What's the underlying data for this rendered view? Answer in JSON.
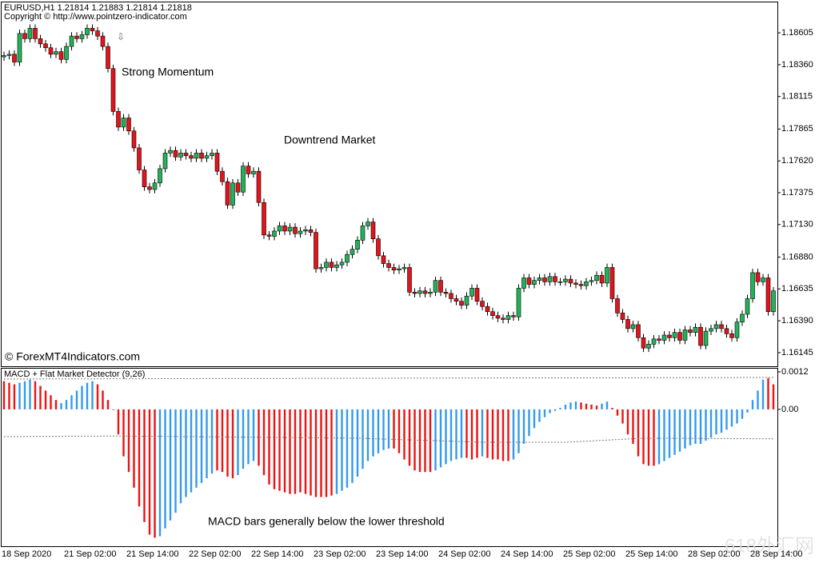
{
  "chart_data": [
    {
      "type": "candlestick",
      "title": "EURUSD,H1  1.21814 1.21883 1.21814 1.21818",
      "subtitle": "Copyright © http://www.pointzero-indicator.com",
      "annotations": [
        "Strong Momentum",
        "Downtrend Market"
      ],
      "watermark": "© ForexMT4Indicators.com",
      "up_color": "#22b35a",
      "down_color": "#e3141b",
      "ylim": [
        1.1604,
        1.18839
      ],
      "yticks": [
        1.18605,
        {
          "value": 1.1836,
          "label": "1.18360"
        },
        1.18115,
        1.17865,
        {
          "value": 1.1762,
          "label": "1.17620"
        },
        1.17375,
        {
          "value": 1.1713,
          "label": "1.17130"
        },
        {
          "value": 1.1688,
          "label": "1.16880"
        },
        1.16635,
        {
          "value": 1.1639,
          "label": "1.16390"
        },
        1.16145
      ],
      "grid": false,
      "open": [
        1.1842,
        1.1843,
        1.1844,
        1.1838,
        1.186,
        1.1856,
        1.1864,
        1.1856,
        1.1852,
        1.1849,
        1.1844,
        1.1846,
        1.184,
        1.185,
        1.1858,
        1.1856,
        1.1859,
        1.1864,
        1.1862,
        1.1858,
        1.185,
        1.1833,
        1.18,
        1.1788,
        1.1795,
        1.1785,
        1.1772,
        1.1755,
        1.1742,
        1.174,
        1.1745,
        1.1756,
        1.1768,
        1.177,
        1.1765,
        1.1768,
        1.1766,
        1.1764,
        1.1768,
        1.1764,
        1.1766,
        1.1768,
        1.1754,
        1.1746,
        1.1728,
        1.1745,
        1.1738,
        1.1758,
        1.1752,
        1.1754,
        1.173,
        1.1705,
        1.1704,
        1.1708,
        1.1712,
        1.1708,
        1.1711,
        1.1706,
        1.1708,
        1.1709,
        1.1707,
        1.1679,
        1.168,
        1.1684,
        1.168,
        1.1682,
        1.1684,
        1.169,
        1.1694,
        1.1701,
        1.1712,
        1.1715,
        1.1702,
        1.1689,
        1.1683,
        1.168,
        1.1678,
        1.1679,
        1.168,
        1.1661,
        1.166,
        1.1662,
        1.166,
        1.1661,
        1.167,
        1.1661,
        1.166,
        1.1656,
        1.1654,
        1.1651,
        1.1658,
        1.1664,
        1.1654,
        1.165,
        1.1646,
        1.1643,
        1.1641,
        1.164,
        1.1643,
        1.1642,
        1.1664,
        1.1672,
        1.1667,
        1.167,
        1.1672,
        1.1669,
        1.1673,
        1.1669,
        1.1669,
        1.1671,
        1.1668,
        1.1667,
        1.1666,
        1.1669,
        1.167,
        1.1674,
        1.1668,
        1.168,
        1.1656,
        1.1645,
        1.164,
        1.1633,
        1.1636,
        1.1626,
        1.1618,
        1.1621,
        1.1625,
        1.1624,
        1.1628,
        1.1626,
        1.163,
        1.1624,
        1.1632,
        1.163,
        1.1634,
        1.162,
        1.1631,
        1.1633,
        1.1636,
        1.1633,
        1.1629,
        1.1626,
        1.1638,
        1.1644,
        1.1656,
        1.1676,
        1.1669,
        1.1672,
        1.1646
      ],
      "high": [
        1.1846,
        1.1847,
        1.1847,
        1.1863,
        1.1863,
        1.1867,
        1.1867,
        1.1859,
        1.1855,
        1.1852,
        1.1849,
        1.1849,
        1.1853,
        1.1861,
        1.1861,
        1.1862,
        1.1867,
        1.1867,
        1.1865,
        1.1861,
        1.1853,
        1.1836,
        1.1803,
        1.1798,
        1.1798,
        1.1788,
        1.1775,
        1.1758,
        1.1745,
        1.1748,
        1.1759,
        1.1771,
        1.1773,
        1.1773,
        1.1771,
        1.1771,
        1.1769,
        1.1771,
        1.1771,
        1.1769,
        1.1771,
        1.1771,
        1.1757,
        1.1749,
        1.1748,
        1.1748,
        1.1761,
        1.1761,
        1.1757,
        1.1757,
        1.1733,
        1.1708,
        1.1711,
        1.1715,
        1.1715,
        1.1714,
        1.1714,
        1.1711,
        1.1712,
        1.1712,
        1.171,
        1.1683,
        1.1687,
        1.1687,
        1.1685,
        1.1687,
        1.1693,
        1.1697,
        1.1704,
        1.1715,
        1.1718,
        1.1718,
        1.1705,
        1.1692,
        1.1686,
        1.1683,
        1.1682,
        1.1683,
        1.1683,
        1.1664,
        1.1665,
        1.1665,
        1.1664,
        1.1673,
        1.1673,
        1.1664,
        1.1663,
        1.1659,
        1.1657,
        1.1661,
        1.1667,
        1.1667,
        1.1657,
        1.1653,
        1.1649,
        1.1646,
        1.1644,
        1.1646,
        1.1646,
        1.1667,
        1.1675,
        1.1675,
        1.1673,
        1.1675,
        1.1675,
        1.1676,
        1.1676,
        1.1672,
        1.1674,
        1.1674,
        1.1671,
        1.167,
        1.1672,
        1.1673,
        1.1677,
        1.1677,
        1.1683,
        1.1683,
        1.1659,
        1.1648,
        1.1643,
        1.1639,
        1.1639,
        1.1629,
        1.1624,
        1.1628,
        1.1628,
        1.1631,
        1.1631,
        1.1633,
        1.1633,
        1.1635,
        1.1635,
        1.1637,
        1.1637,
        1.1634,
        1.1636,
        1.1639,
        1.1639,
        1.1636,
        1.1632,
        1.1641,
        1.1647,
        1.1659,
        1.1679,
        1.1679,
        1.1675,
        1.1675,
        1.1665
      ],
      "low": [
        1.1839,
        1.184,
        1.1835,
        1.1835,
        1.1853,
        1.1853,
        1.1853,
        1.1849,
        1.1846,
        1.1841,
        1.1841,
        1.1837,
        1.1837,
        1.1847,
        1.1853,
        1.1853,
        1.1856,
        1.1859,
        1.1855,
        1.1847,
        1.183,
        1.1797,
        1.1785,
        1.1785,
        1.1782,
        1.1769,
        1.1752,
        1.1739,
        1.1737,
        1.1737,
        1.1742,
        1.1753,
        1.1765,
        1.1762,
        1.1762,
        1.1763,
        1.1761,
        1.1761,
        1.1761,
        1.1761,
        1.1763,
        1.1751,
        1.1743,
        1.1725,
        1.1725,
        1.1735,
        1.1735,
        1.1749,
        1.1749,
        1.1727,
        1.1702,
        1.1701,
        1.1701,
        1.1705,
        1.1705,
        1.1705,
        1.1703,
        1.1703,
        1.1705,
        1.1704,
        1.1676,
        1.1676,
        1.1677,
        1.1677,
        1.1677,
        1.1679,
        1.1681,
        1.1687,
        1.1691,
        1.1698,
        1.1709,
        1.1699,
        1.1686,
        1.168,
        1.1677,
        1.1675,
        1.1675,
        1.1676,
        1.1658,
        1.1657,
        1.1657,
        1.1657,
        1.1657,
        1.1658,
        1.1658,
        1.1657,
        1.1653,
        1.1651,
        1.1648,
        1.1648,
        1.1655,
        1.1651,
        1.1647,
        1.1643,
        1.164,
        1.1638,
        1.1637,
        1.1637,
        1.1639,
        1.1639,
        1.1661,
        1.1664,
        1.1664,
        1.1667,
        1.1666,
        1.1666,
        1.1666,
        1.1666,
        1.1666,
        1.1665,
        1.1664,
        1.1663,
        1.1663,
        1.1666,
        1.1667,
        1.1665,
        1.1665,
        1.1653,
        1.1642,
        1.1637,
        1.163,
        1.163,
        1.1623,
        1.1615,
        1.1615,
        1.1618,
        1.1621,
        1.1621,
        1.1623,
        1.1623,
        1.1621,
        1.1621,
        1.1627,
        1.1627,
        1.1617,
        1.1617,
        1.1628,
        1.163,
        1.163,
        1.1626,
        1.1623,
        1.1623,
        1.1635,
        1.1641,
        1.1653,
        1.1666,
        1.1666,
        1.1643,
        1.1643
      ],
      "close": [
        1.1843,
        1.1844,
        1.1838,
        1.186,
        1.1856,
        1.1864,
        1.1856,
        1.1852,
        1.1849,
        1.1844,
        1.1846,
        1.184,
        1.185,
        1.1858,
        1.1856,
        1.1859,
        1.1864,
        1.1862,
        1.1858,
        1.185,
        1.1833,
        1.18,
        1.1788,
        1.1795,
        1.1785,
        1.1772,
        1.1755,
        1.1742,
        1.174,
        1.1745,
        1.1756,
        1.1768,
        1.177,
        1.1765,
        1.1768,
        1.1766,
        1.1764,
        1.1768,
        1.1764,
        1.1766,
        1.1768,
        1.1754,
        1.1746,
        1.1728,
        1.1745,
        1.1738,
        1.1758,
        1.1752,
        1.1754,
        1.173,
        1.1705,
        1.1704,
        1.1708,
        1.1712,
        1.1708,
        1.1711,
        1.1706,
        1.1708,
        1.1709,
        1.1707,
        1.1679,
        1.168,
        1.1684,
        1.168,
        1.1682,
        1.1684,
        1.169,
        1.1694,
        1.1701,
        1.1712,
        1.1715,
        1.1702,
        1.1689,
        1.1683,
        1.168,
        1.1678,
        1.1679,
        1.168,
        1.1661,
        1.166,
        1.1662,
        1.166,
        1.1661,
        1.167,
        1.1661,
        1.166,
        1.1656,
        1.1654,
        1.1651,
        1.1658,
        1.1664,
        1.1654,
        1.165,
        1.1646,
        1.1643,
        1.1641,
        1.164,
        1.1643,
        1.1642,
        1.1664,
        1.1672,
        1.1667,
        1.167,
        1.1672,
        1.1669,
        1.1673,
        1.1669,
        1.1669,
        1.1671,
        1.1668,
        1.1667,
        1.1666,
        1.1669,
        1.167,
        1.1674,
        1.1668,
        1.168,
        1.1656,
        1.1645,
        1.164,
        1.1633,
        1.1636,
        1.1626,
        1.1618,
        1.1621,
        1.1625,
        1.1624,
        1.1628,
        1.1626,
        1.163,
        1.1624,
        1.1632,
        1.163,
        1.1634,
        1.162,
        1.1631,
        1.1633,
        1.1636,
        1.1633,
        1.1629,
        1.1626,
        1.1638,
        1.1644,
        1.1656,
        1.1676,
        1.1669,
        1.1672,
        1.1646,
        1.1662
      ]
    },
    {
      "type": "bar",
      "title": "MACD + Flat Market Detector (9,26)",
      "annotations": [
        "MACD bars generally below the lower threshold"
      ],
      "watermark": "618外汇网",
      "ylim": [
        -0.00437,
        0.0013
      ],
      "yticks": [
        0.0012,
        {
          "value": 0,
          "label": "0.00"
        }
      ],
      "grid": false,
      "categories": [
        "18 Sep 2020",
        null,
        null,
        null,
        null,
        null,
        null,
        null,
        null,
        null,
        null,
        null,
        "21 Sep 02:00",
        null,
        null,
        null,
        null,
        null,
        null,
        null,
        null,
        null,
        null,
        null,
        "21 Sep 14:00",
        null,
        null,
        null,
        null,
        null,
        null,
        null,
        null,
        null,
        null,
        null,
        "22 Sep 02:00",
        null,
        null,
        null,
        null,
        null,
        null,
        null,
        null,
        null,
        null,
        null,
        "22 Sep 14:00",
        null,
        null,
        null,
        null,
        null,
        null,
        null,
        null,
        null,
        null,
        null,
        "23 Sep 02:00",
        null,
        null,
        null,
        null,
        null,
        null,
        null,
        null,
        null,
        null,
        null,
        "23 Sep 14:00",
        null,
        null,
        null,
        null,
        null,
        null,
        null,
        null,
        null,
        null,
        null,
        "24 Sep 02:00",
        null,
        null,
        null,
        null,
        null,
        null,
        null,
        null,
        null,
        null,
        null,
        "24 Sep 14:00",
        null,
        null,
        null,
        null,
        null,
        null,
        null,
        null,
        null,
        null,
        null,
        "25 Sep 02:00",
        null,
        null,
        null,
        null,
        null,
        null,
        null,
        null,
        null,
        null,
        null,
        "25 Sep 14:00",
        null,
        null,
        null,
        null,
        null,
        null,
        null,
        null,
        null,
        null,
        null,
        "28 Sep 02:00",
        null,
        null,
        null,
        null,
        null,
        null,
        null,
        null,
        null,
        null,
        null,
        "28 Sep 14:00",
        null,
        null,
        null,
        null
      ],
      "values": [
        0.0009,
        0.00085,
        0.0008,
        0.00085,
        0.0009,
        0.00095,
        0.0009,
        0.00075,
        0.0006,
        0.00045,
        0.0003,
        0.0002,
        0.0003,
        0.00045,
        0.0006,
        0.00075,
        0.00085,
        0.0009,
        0.0008,
        0.0006,
        0.0003,
        -2e-05,
        -0.0008,
        -0.0015,
        -0.002,
        -0.0025,
        -0.0031,
        -0.0036,
        -0.004,
        -0.0041,
        -0.00405,
        -0.0038,
        -0.00355,
        -0.0033,
        -0.003,
        -0.0028,
        -0.00265,
        -0.0025,
        -0.00235,
        -0.0022,
        -0.00205,
        -0.00195,
        -0.002,
        -0.00215,
        -0.0022,
        -0.0021,
        -0.0019,
        -0.00175,
        -0.00165,
        -0.0018,
        -0.0021,
        -0.0024,
        -0.00255,
        -0.0026,
        -0.00265,
        -0.0027,
        -0.0027,
        -0.00265,
        -0.0027,
        -0.00275,
        -0.0028,
        -0.0028,
        -0.0028,
        -0.00275,
        -0.0027,
        -0.0026,
        -0.0025,
        -0.00235,
        -0.00215,
        -0.0019,
        -0.00165,
        -0.0015,
        -0.0014,
        -0.0013,
        -0.00125,
        -0.00125,
        -0.0014,
        -0.0016,
        -0.0018,
        -0.00195,
        -0.002,
        -0.002,
        -0.002,
        -0.00195,
        -0.00185,
        -0.00175,
        -0.00165,
        -0.0016,
        -0.00155,
        -0.00155,
        -0.0016,
        -0.00155,
        -0.0015,
        -0.00155,
        -0.0016,
        -0.0016,
        -0.00165,
        -0.00165,
        -0.0016,
        -0.0014,
        -0.0011,
        -0.00085,
        -0.0006,
        -0.0004,
        -0.00025,
        -0.00012,
        -5e-05,
        5e-05,
        0.00015,
        0.00022,
        0.00025,
        0.00022,
        0.00018,
        0.00015,
        0.00012,
        0.00018,
        0.00025,
        5e-05,
        -0.0002,
        -0.00045,
        -0.0008,
        -0.0011,
        -0.0015,
        -0.00175,
        -0.0018,
        -0.0018,
        -0.00175,
        -0.00165,
        -0.00155,
        -0.00145,
        -0.00135,
        -0.00125,
        -0.00115,
        -0.0011,
        -0.0011,
        -0.001,
        -0.0009,
        -0.0008,
        -0.00075,
        -0.00065,
        -0.00055,
        -0.00045,
        -0.0003,
        -0.0001,
        0.0003,
        0.0006,
        0.00095,
        0.001,
        0.0008
      ],
      "bar_colors": [
        "#e11",
        "#e11",
        "#e11",
        "#39e",
        "#39e",
        "#39e",
        "#e11",
        "#e11",
        "#e11",
        "#e11",
        "#e11",
        "#39e",
        "#39e",
        "#39e",
        "#39e",
        "#39e",
        "#39e",
        "#39e",
        "#e11",
        "#e11",
        "#e11",
        "#e11",
        "#e11",
        "#e11",
        "#e11",
        "#e11",
        "#e11",
        "#e11",
        "#e11",
        "#e11",
        "#39e",
        "#39e",
        "#39e",
        "#39e",
        "#39e",
        "#39e",
        "#39e",
        "#39e",
        "#39e",
        "#39e",
        "#39e",
        "#e11",
        "#e11",
        "#e11",
        "#e11",
        "#39e",
        "#39e",
        "#39e",
        "#39e",
        "#e11",
        "#e11",
        "#e11",
        "#e11",
        "#e11",
        "#e11",
        "#e11",
        "#e11",
        "#e11",
        "#e11",
        "#e11",
        "#e11",
        "#e11",
        "#e11",
        "#e11",
        "#39e",
        "#39e",
        "#39e",
        "#39e",
        "#39e",
        "#39e",
        "#39e",
        "#39e",
        "#39e",
        "#39e",
        "#39e",
        "#e11",
        "#e11",
        "#e11",
        "#e11",
        "#e11",
        "#e11",
        "#e11",
        "#e11",
        "#39e",
        "#39e",
        "#39e",
        "#39e",
        "#39e",
        "#39e",
        "#e11",
        "#e11",
        "#e11",
        "#39e",
        "#e11",
        "#e11",
        "#e11",
        "#e11",
        "#e11",
        "#39e",
        "#39e",
        "#39e",
        "#39e",
        "#39e",
        "#39e",
        "#39e",
        "#39e",
        "#39e",
        "#39e",
        "#39e",
        "#39e",
        "#39e",
        "#e11",
        "#e11",
        "#e11",
        "#e11",
        "#39e",
        "#39e",
        "#e11",
        "#e11",
        "#e11",
        "#e11",
        "#e11",
        "#e11",
        "#e11",
        "#e11",
        "#e11",
        "#39e",
        "#39e",
        "#39e",
        "#39e",
        "#39e",
        "#39e",
        "#39e",
        "#39e",
        "#39e",
        "#39e",
        "#39e",
        "#39e",
        "#39e",
        "#39e",
        "#39e",
        "#39e",
        "#39e",
        "#39e",
        "#39e",
        "#39e",
        "#39e",
        "#e11",
        "#e11"
      ],
      "lines": [
        {
          "color": "#777",
          "x": [
            0,
            90,
            148
          ],
          "values": [
            0.00097,
            0.001,
            0.00102
          ]
        },
        {
          "color": "#777",
          "x": [
            0,
            22,
            68,
            92,
            108,
            123,
            148
          ],
          "values": [
            -0.00087,
            -0.00085,
            -0.00092,
            -0.00105,
            -0.00105,
            -0.00092,
            -0.00094
          ]
        }
      ]
    }
  ]
}
